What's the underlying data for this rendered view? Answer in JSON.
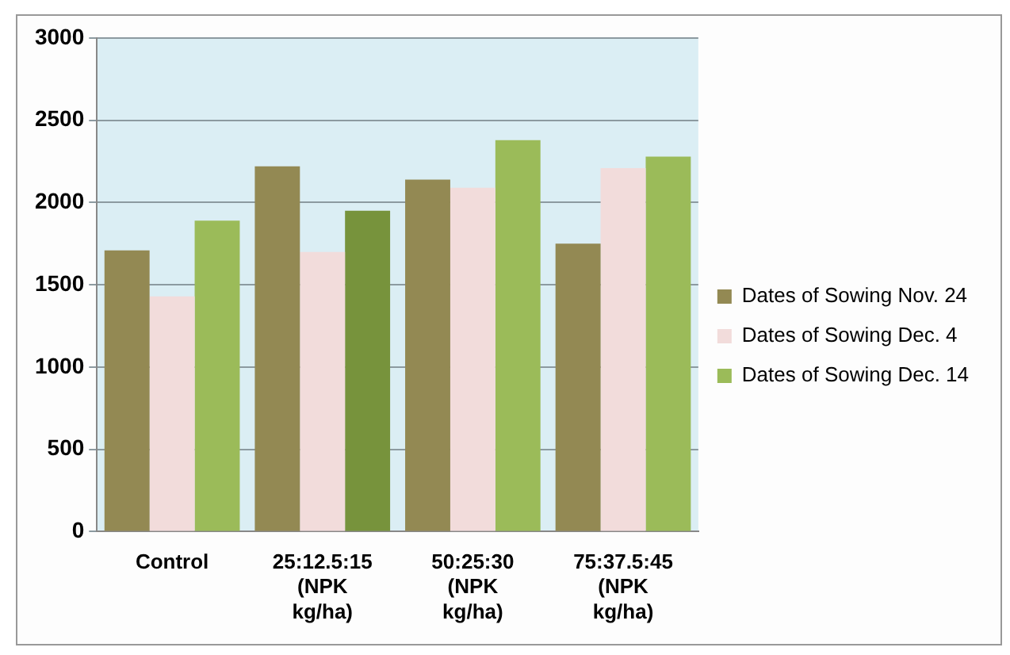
{
  "chart_data": {
    "type": "bar",
    "categories": [
      "Control",
      "25:12.5:15 (NPK kg/ha)",
      "50:25:30 (NPK kg/ha)",
      "75:37.5:45 (NPK kg/ha)"
    ],
    "series": [
      {
        "name": "Dates of Sowing Nov. 24",
        "color": "#938953",
        "values": [
          1710,
          2220,
          2140,
          1750
        ]
      },
      {
        "name": "Dates of Sowing Dec. 4",
        "color": "#f2dcdb",
        "values": [
          1430,
          1700,
          2090,
          2210
        ]
      },
      {
        "name": "Dates of Sowing Dec. 14",
        "color": "#9bbb59",
        "colors": [
          "#9bbb59",
          "#77933c",
          "#9bbb59",
          "#9bbb59"
        ],
        "values": [
          1890,
          1950,
          2380,
          2280
        ]
      }
    ],
    "ylim": [
      0,
      3000
    ],
    "yticks": [
      0,
      500,
      1000,
      1500,
      2000,
      2500,
      3000
    ],
    "grid": "y",
    "legend": "right"
  }
}
